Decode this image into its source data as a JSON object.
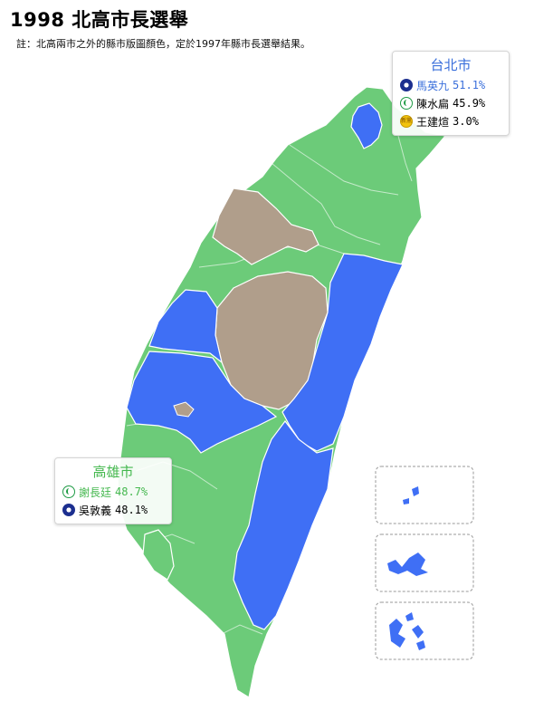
{
  "title": "1998 北高市長選舉",
  "note": "註：北高兩市之外的縣市版圖顏色，定於1997年縣市長選舉結果。",
  "colors": {
    "kmt_blue": "#3f6ff5",
    "dpp_green": "#6ccb79",
    "independent_tan": "#b09e8b",
    "border": "#ffffff"
  },
  "taipei": {
    "city": "台北市",
    "candidates": [
      {
        "party_icon": "kmt-emblem-icon",
        "name": "馬英九",
        "pct": "51.1%",
        "winner": true
      },
      {
        "party_icon": "dpp-emblem-icon",
        "name": "陳水扁",
        "pct": "45.9%",
        "winner": false
      },
      {
        "party_icon": "new-party-emblem-icon",
        "name": "王建煊",
        "pct": "3.0%",
        "winner": false
      }
    ]
  },
  "kaohsiung": {
    "city": "高雄市",
    "candidates": [
      {
        "party_icon": "dpp-emblem-icon",
        "name": "謝長廷",
        "pct": "48.7%",
        "winner": true
      },
      {
        "party_icon": "kmt-emblem-icon",
        "name": "吳敦義",
        "pct": "48.1%",
        "winner": false
      }
    ]
  },
  "party_icon_text": {
    "new_party": "新黨"
  }
}
